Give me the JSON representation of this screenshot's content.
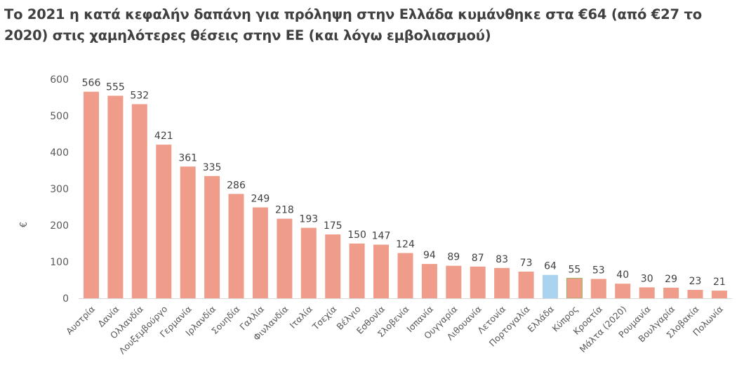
{
  "chart_data": {
    "type": "bar",
    "title": "Το 2021 η κατά κεφαλήν δαπάνη για πρόληψη στην Ελλάδα κυμάνθηκε στα €64 (από €27 το 2020) στις χαμηλότερες θέσεις στην ΕΕ (και λόγω εμβολιασμού)",
    "xlabel": "",
    "ylabel": "€",
    "ylim": [
      0,
      600
    ],
    "yticks": [
      0,
      100,
      200,
      300,
      400,
      500,
      600
    ],
    "grid": false,
    "legend": "none",
    "categories": [
      "Αυστρία",
      "Δανία",
      "Ολλανδία",
      "Λουξεμβούργο",
      "Γερμανία",
      "Ιρλανδία",
      "Σουηδία",
      "Γαλλία",
      "Φινλανδία",
      "Ιταλία",
      "Τσεχία",
      "Βέλγιο",
      "Εσθονία",
      "Σλοβενία",
      "Ισπανία",
      "Ουγγαρία",
      "Λιθουανία",
      "Λετονία",
      "Πορτογαλία",
      "Ελλάδα",
      "Κύπρος",
      "Κροατία",
      "Μάλτα (2020)",
      "Ρουμανία",
      "Βουλγαρία",
      "Σλοβακία",
      "Πολωνία"
    ],
    "values": [
      566,
      555,
      532,
      421,
      361,
      335,
      286,
      249,
      218,
      193,
      175,
      150,
      147,
      124,
      94,
      89,
      87,
      83,
      73,
      64,
      55,
      53,
      40,
      30,
      29,
      23,
      21
    ],
    "colors": {
      "default": "#f09c8a",
      "highlight": "#a9d3ef",
      "highlight_category": "Ελλάδα",
      "cyprus_outline": "#9fae5f"
    }
  }
}
